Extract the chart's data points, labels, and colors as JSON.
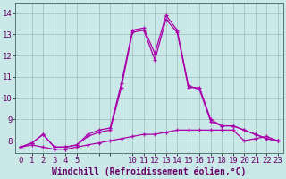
{
  "background_color": "#cbe8e8",
  "grid_color": "#99bbbb",
  "line_color": "#aa00aa",
  "marker": "+",
  "xlabel": "Windchill (Refroidissement éolien,°C)",
  "xlabel_color": "#660066",
  "xlabel_fontsize": 7,
  "tick_color": "#660066",
  "tick_fontsize": 6.5,
  "ylim": [
    7.4,
    14.5
  ],
  "xlim": [
    -0.5,
    23.5
  ],
  "yticks": [
    8,
    9,
    10,
    11,
    12,
    13,
    14
  ],
  "xtick_labels": [
    "0",
    "1",
    "2",
    "3",
    "4",
    "5",
    "",
    "",
    "",
    "",
    "10",
    "11",
    "12",
    "13",
    "14",
    "15",
    "16",
    "17",
    "18",
    "19",
    "20",
    "21",
    "22",
    "23"
  ],
  "series_main": [
    7.7,
    7.9,
    8.3,
    7.7,
    7.7,
    7.8,
    8.2,
    8.4,
    8.5,
    10.5,
    13.1,
    13.2,
    11.8,
    13.7,
    13.1,
    10.5,
    10.5,
    9.0,
    8.7,
    8.7,
    8.5,
    8.3,
    8.1,
    8.0
  ],
  "series_high": [
    7.7,
    7.9,
    8.3,
    7.7,
    7.7,
    7.8,
    8.3,
    8.5,
    8.6,
    10.7,
    13.2,
    13.3,
    12.1,
    13.9,
    13.2,
    10.6,
    10.4,
    8.9,
    8.7,
    8.7,
    8.5,
    8.3,
    8.1,
    8.0
  ],
  "series_low": [
    7.7,
    7.8,
    7.7,
    7.6,
    7.6,
    7.7,
    7.8,
    7.9,
    8.0,
    8.1,
    8.2,
    8.3,
    8.3,
    8.4,
    8.5,
    8.5,
    8.5,
    8.5,
    8.5,
    8.5,
    8.0,
    8.1,
    8.2,
    8.0
  ]
}
